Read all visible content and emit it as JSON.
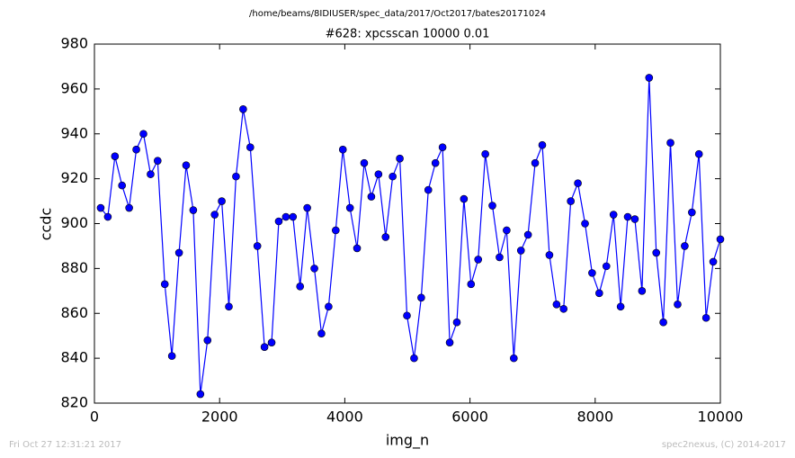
{
  "chart_data": {
    "type": "line",
    "suptitle": "/home/beams/8IDIUSER/spec_data/2017/Oct2017/bates20171024",
    "title": "#628: xpcsscan 10000 0.01",
    "xlabel": "img_n",
    "ylabel": "ccdc",
    "footer_left": "Fri Oct 27 12:31:21 2017",
    "footer_right": "spec2nexus, (C) 2014-2017",
    "x": [
      100,
      214,
      328,
      441,
      555,
      669,
      783,
      897,
      1010,
      1124,
      1238,
      1352,
      1465,
      1579,
      1693,
      1807,
      1921,
      2034,
      2148,
      2262,
      2376,
      2490,
      2603,
      2717,
      2831,
      2945,
      3059,
      3172,
      3286,
      3400,
      3514,
      3627,
      3741,
      3855,
      3969,
      4083,
      4196,
      4310,
      4424,
      4538,
      4652,
      4765,
      4879,
      4993,
      5107,
      5221,
      5334,
      5448,
      5562,
      5676,
      5790,
      5903,
      6017,
      6131,
      6245,
      6358,
      6472,
      6586,
      6700,
      6814,
      6927,
      7041,
      7155,
      7269,
      7383,
      7496,
      7610,
      7724,
      7838,
      7951,
      8065,
      8179,
      8293,
      8407,
      8520,
      8634,
      8748,
      8862,
      8976,
      9089,
      9203,
      9317,
      9431,
      9545,
      9658,
      9772,
      9886,
      10000
    ],
    "series": [
      {
        "color": "#0000ff",
        "values": [
          907,
          903,
          930,
          917,
          907,
          933,
          940,
          922,
          928,
          873,
          841,
          887,
          926,
          906,
          824,
          848,
          904,
          910,
          863,
          921,
          951,
          934,
          890,
          845,
          847,
          901,
          903,
          903,
          872,
          907,
          880,
          851,
          863,
          897,
          933,
          907,
          889,
          927,
          912,
          922,
          894,
          921,
          929,
          859,
          840,
          867,
          915,
          927,
          934,
          847,
          856,
          911,
          873,
          884,
          931,
          908,
          885,
          897,
          840,
          888,
          895,
          927,
          935,
          886,
          864,
          862,
          910,
          918,
          900,
          878,
          869,
          881,
          904,
          863,
          903,
          902,
          870,
          965,
          887,
          856,
          936,
          864,
          890,
          905,
          931,
          858,
          883,
          893
        ]
      }
    ],
    "xlim": [
      0,
      10000
    ],
    "xticks": [
      0,
      2000,
      4000,
      6000,
      8000,
      10000
    ],
    "ylim": [
      820,
      980
    ],
    "yticks": [
      820,
      840,
      860,
      880,
      900,
      920,
      940,
      960,
      980
    ]
  }
}
